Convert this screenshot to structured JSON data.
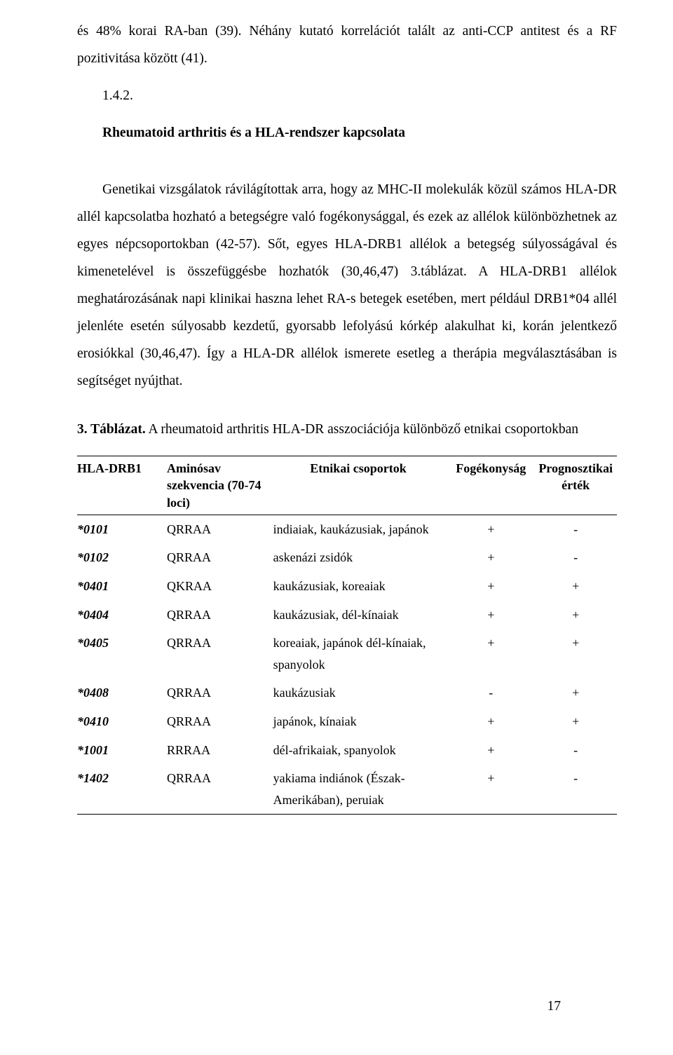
{
  "colors": {
    "text": "#000000",
    "bg": "#ffffff",
    "rule": "#000000"
  },
  "typography": {
    "family": "Times New Roman",
    "body_size_pt": 15,
    "table_size_pt": 13.5,
    "line_height": 2.0
  },
  "intro_paragraph": "és 48% korai RA-ban (39). Néhány kutató korrelációt talált az anti-CCP antitest és a RF pozitivitása között (41).",
  "section": {
    "number": "1.4.2.",
    "title": "Rheumatoid arthritis és a HLA-rendszer kapcsolata"
  },
  "body_paragraph": "Genetikai vizsgálatok rávilágítottak arra, hogy az MHC-II molekulák közül számos HLA-DR allél kapcsolatba hozható a betegségre való fogékonysággal, és ezek az allélok különbözhetnek az egyes népcsoportokban (42-57). Sőt, egyes HLA-DRB1 allélok a betegség súlyosságával és kimenetelével is összefüggésbe hozhatók (30,46,47) 3.táblázat. A HLA-DRB1 allélok meghatározásának napi klinikai haszna lehet RA-s betegek esetében, mert például DRB1*04 allél jelenléte esetén súlyosabb kezdetű, gyorsabb lefolyású kórkép alakulhat ki, korán jelentkező erosiókkal (30,46,47). Így a HLA-DR allélok ismerete esetleg a therápia megválasztásában is segítséget nyújthat.",
  "table_caption_bold": "3. Táblázat.",
  "table_caption_rest": " A rheumatoid arthritis HLA-DR asszociációja különböző etnikai csoportokban",
  "table": {
    "columns": [
      {
        "key": "hla",
        "label": "HLA-DRB1",
        "align": "left"
      },
      {
        "key": "seq",
        "label": "Aminósav szekvencia (70-74 loci)",
        "align": "left"
      },
      {
        "key": "ethnic",
        "label": "Etnikai csoportok",
        "align": "left"
      },
      {
        "key": "susc",
        "label": "Fogékonyság",
        "align": "center"
      },
      {
        "key": "prog",
        "label": "Prognosztikai érték",
        "align": "center"
      }
    ],
    "rows": [
      {
        "hla": "*0101",
        "seq": "QRRAA",
        "ethnic": "indiaiak, kaukázusiak, japánok",
        "susc": "+",
        "prog": "-"
      },
      {
        "hla": "*0102",
        "seq": "QRRAA",
        "ethnic": "askenázi zsidók",
        "susc": "+",
        "prog": "-"
      },
      {
        "hla": "*0401",
        "seq": "QKRAA",
        "ethnic": "kaukázusiak, koreaiak",
        "susc": "+",
        "prog": "+"
      },
      {
        "hla": "*0404",
        "seq": "QRRAA",
        "ethnic": "kaukázusiak, dél-kínaiak",
        "susc": "+",
        "prog": "+"
      },
      {
        "hla": "*0405",
        "seq": "QRRAA",
        "ethnic": "koreaiak, japánok dél-kínaiak, spanyolok",
        "susc": "+",
        "prog": "+"
      },
      {
        "hla": "*0408",
        "seq": "QRRAA",
        "ethnic": "kaukázusiak",
        "susc": "-",
        "prog": "+"
      },
      {
        "hla": "*0410",
        "seq": "QRRAA",
        "ethnic": "japánok, kínaiak",
        "susc": "+",
        "prog": "+"
      },
      {
        "hla": "*1001",
        "seq": "RRRAA",
        "ethnic": "dél-afrikaiak, spanyolok",
        "susc": "+",
        "prog": "-"
      },
      {
        "hla": "*1402",
        "seq": "QRRAA",
        "ethnic": "yakiama indiánok (Észak-Amerikában), peruiak",
        "susc": "+",
        "prog": "-"
      }
    ]
  },
  "page_number": "17"
}
